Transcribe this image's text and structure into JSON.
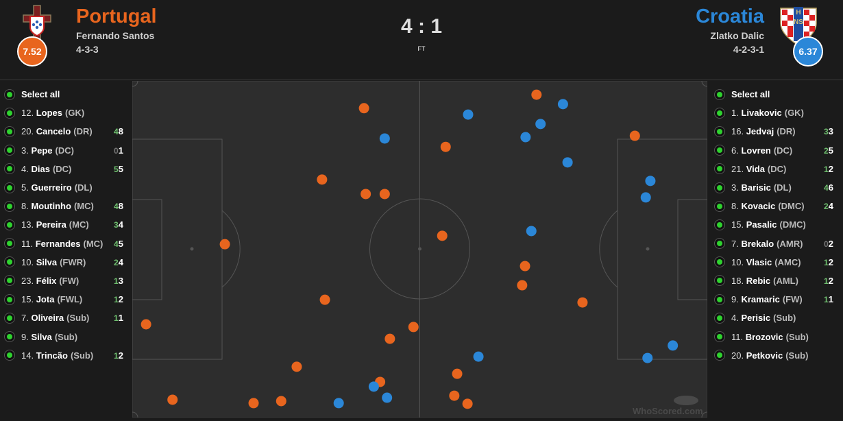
{
  "home": {
    "name": "Portugal",
    "manager": "Fernando Santos",
    "formation": "4-3-3",
    "rating": "7.52",
    "color": "#e8651e",
    "crest": "portugal-crest"
  },
  "away": {
    "name": "Croatia",
    "manager": "Zlatko Dalic",
    "formation": "4-2-3-1",
    "rating": "6.37",
    "color": "#2b87d8",
    "crest": "croatia-hns-crest",
    "crest_text": "HNS"
  },
  "score": "4 : 1",
  "status": "FT",
  "select_all": "Select all",
  "home_players": [
    {
      "num": "12.",
      "name": "Lopes",
      "pos": "(GK)",
      "s1": "",
      "s2": ""
    },
    {
      "num": "20.",
      "name": "Cancelo",
      "pos": "(DR)",
      "s1": "4",
      "s2": "8"
    },
    {
      "num": "3.",
      "name": "Pepe",
      "pos": "(DC)",
      "s1": "0",
      "s2": "1"
    },
    {
      "num": "4.",
      "name": "Dias",
      "pos": "(DC)",
      "s1": "5",
      "s2": "5"
    },
    {
      "num": "5.",
      "name": "Guerreiro",
      "pos": "(DL)",
      "s1": "",
      "s2": ""
    },
    {
      "num": "8.",
      "name": "Moutinho",
      "pos": "(MC)",
      "s1": "4",
      "s2": "8"
    },
    {
      "num": "13.",
      "name": "Pereira",
      "pos": "(MC)",
      "s1": "3",
      "s2": "4"
    },
    {
      "num": "11.",
      "name": "Fernandes",
      "pos": "(MC)",
      "s1": "4",
      "s2": "5"
    },
    {
      "num": "10.",
      "name": "Silva",
      "pos": "(FWR)",
      "s1": "2",
      "s2": "4"
    },
    {
      "num": "23.",
      "name": "Félix",
      "pos": "(FW)",
      "s1": "1",
      "s2": "3"
    },
    {
      "num": "15.",
      "name": "Jota",
      "pos": "(FWL)",
      "s1": "1",
      "s2": "2"
    },
    {
      "num": "7.",
      "name": "Oliveira",
      "pos": "(Sub)",
      "s1": "1",
      "s2": "1"
    },
    {
      "num": "9.",
      "name": "Silva",
      "pos": "(Sub)",
      "s1": "",
      "s2": ""
    },
    {
      "num": "14.",
      "name": "Trincão",
      "pos": "(Sub)",
      "s1": "1",
      "s2": "2"
    }
  ],
  "away_players": [
    {
      "num": "1.",
      "name": "Livakovic",
      "pos": "(GK)",
      "s1": "",
      "s2": ""
    },
    {
      "num": "16.",
      "name": "Jedvaj",
      "pos": "(DR)",
      "s1": "3",
      "s2": "3"
    },
    {
      "num": "6.",
      "name": "Lovren",
      "pos": "(DC)",
      "s1": "2",
      "s2": "5"
    },
    {
      "num": "21.",
      "name": "Vida",
      "pos": "(DC)",
      "s1": "1",
      "s2": "2"
    },
    {
      "num": "3.",
      "name": "Barisic",
      "pos": "(DL)",
      "s1": "4",
      "s2": "6"
    },
    {
      "num": "8.",
      "name": "Kovacic",
      "pos": "(DMC)",
      "s1": "2",
      "s2": "4"
    },
    {
      "num": "15.",
      "name": "Pasalic",
      "pos": "(DMC)",
      "s1": "",
      "s2": ""
    },
    {
      "num": "7.",
      "name": "Brekalo",
      "pos": "(AMR)",
      "s1": "0",
      "s2": "2"
    },
    {
      "num": "10.",
      "name": "Vlasic",
      "pos": "(AMC)",
      "s1": "1",
      "s2": "2"
    },
    {
      "num": "18.",
      "name": "Rebic",
      "pos": "(AML)",
      "s1": "1",
      "s2": "2"
    },
    {
      "num": "9.",
      "name": "Kramaric",
      "pos": "(FW)",
      "s1": "1",
      "s2": "1"
    },
    {
      "num": "4.",
      "name": "Perisic",
      "pos": "(Sub)",
      "s1": "",
      "s2": ""
    },
    {
      "num": "11.",
      "name": "Brozovic",
      "pos": "(Sub)",
      "s1": "",
      "s2": ""
    },
    {
      "num": "20.",
      "name": "Petkovic",
      "pos": "(Sub)",
      "s1": "",
      "s2": ""
    }
  ],
  "watermark": "WhoScored.com",
  "pitch_events": {
    "units": "percent of pitch length (x, left to right) and width (y, top to bottom)",
    "home": [
      [
        40.3,
        8.1
      ],
      [
        33.0,
        29.3
      ],
      [
        40.6,
        33.6
      ],
      [
        43.9,
        33.6
      ],
      [
        16.1,
        48.5
      ],
      [
        33.5,
        65.0
      ],
      [
        2.4,
        72.3
      ],
      [
        48.9,
        73.1
      ],
      [
        44.8,
        76.6
      ],
      [
        28.6,
        84.9
      ],
      [
        43.1,
        89.4
      ],
      [
        7.0,
        94.7
      ],
      [
        21.1,
        95.7
      ],
      [
        25.9,
        95.1
      ],
      [
        54.5,
        19.6
      ],
      [
        53.9,
        46.0
      ],
      [
        70.3,
        4.1
      ],
      [
        87.4,
        16.3
      ],
      [
        68.3,
        55.0
      ],
      [
        67.8,
        60.7
      ],
      [
        78.3,
        65.8
      ],
      [
        56.5,
        87.0
      ],
      [
        56.0,
        93.5
      ],
      [
        58.3,
        95.9
      ]
    ],
    "away": [
      [
        43.9,
        17.1
      ],
      [
        58.4,
        10.0
      ],
      [
        68.4,
        16.7
      ],
      [
        71.0,
        12.8
      ],
      [
        74.9,
        6.9
      ],
      [
        75.7,
        24.2
      ],
      [
        90.1,
        29.7
      ],
      [
        89.3,
        34.6
      ],
      [
        69.4,
        44.6
      ],
      [
        60.2,
        81.9
      ],
      [
        42.0,
        90.8
      ],
      [
        44.3,
        94.1
      ],
      [
        35.9,
        95.7
      ],
      [
        94.0,
        78.6
      ],
      [
        89.6,
        82.3
      ]
    ]
  }
}
